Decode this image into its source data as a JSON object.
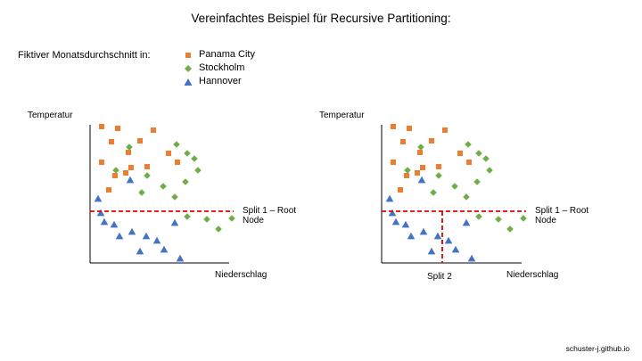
{
  "title": "Vereinfachtes Beispiel für Recursive Partitioning:",
  "legend_label": "Fiktiver Monatsdurchschnitt in:",
  "legend": [
    {
      "name": "Panama City",
      "shape": "square",
      "color": "#ED7D31"
    },
    {
      "name": "Stockholm",
      "shape": "diamond",
      "color": "#70AD47"
    },
    {
      "name": "Hannover",
      "shape": "triangle",
      "color": "#4472C4"
    }
  ],
  "footer": "schuster-j.github.io",
  "split_color": "#E00000",
  "panels": [
    {
      "ylabel": "Temperatur",
      "xlabel": "Niederschlag",
      "split1_label_line1": "Split 1 – Root",
      "split1_label_line2": "Node",
      "split2_label": ""
    },
    {
      "ylabel": "Temperatur",
      "xlabel": "Niederschlag",
      "split1_label_line1": "Split 1 – Root",
      "split1_label_line2": "Node",
      "split2_label": "Split 2"
    }
  ],
  "chart_data": {
    "type": "scatter",
    "axes_numbered": false,
    "series": [
      {
        "name": "Panama City",
        "shape": "square",
        "color": "#ED7D31",
        "points": [
          [
            13,
            95
          ],
          [
            24,
            78
          ],
          [
            31,
            93
          ],
          [
            13,
            55
          ],
          [
            28,
            40
          ],
          [
            43,
            66
          ],
          [
            46,
            49
          ],
          [
            56,
            79
          ],
          [
            64,
            50
          ],
          [
            71,
            91
          ],
          [
            88,
            65
          ],
          [
            98,
            55
          ],
          [
            40,
            43
          ],
          [
            21,
            24
          ]
        ]
      },
      {
        "name": "Stockholm",
        "shape": "diamond",
        "color": "#70AD47",
        "points": [
          [
            29,
            46
          ],
          [
            44,
            72
          ],
          [
            64,
            40
          ],
          [
            82,
            28
          ],
          [
            58,
            21
          ],
          [
            95,
            16
          ],
          [
            109,
            65
          ],
          [
            97,
            75
          ],
          [
            117,
            59
          ],
          [
            107,
            33
          ],
          [
            121,
            46
          ],
          [
            109,
            -6
          ],
          [
            131,
            -9
          ],
          [
            144,
            -20
          ],
          [
            159,
            -8
          ]
        ]
      },
      {
        "name": "Hannover",
        "shape": "triangle",
        "color": "#4472C4",
        "points": [
          [
            9,
            14
          ],
          [
            45,
            35
          ],
          [
            16,
            -12
          ],
          [
            12,
            -2
          ],
          [
            27,
            -15
          ],
          [
            33,
            -28
          ],
          [
            47,
            -23
          ],
          [
            56,
            -45
          ],
          [
            63,
            -28
          ],
          [
            75,
            -33
          ],
          [
            83,
            -43
          ],
          [
            95,
            -13
          ],
          [
            101,
            -53
          ]
        ]
      }
    ],
    "split1_y": 0,
    "split2_x": 68
  }
}
